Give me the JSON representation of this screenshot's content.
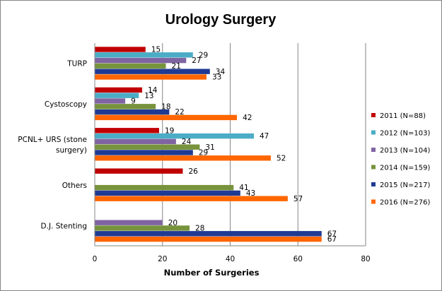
{
  "chart_data": {
    "type": "bar",
    "orientation": "horizontal",
    "title": "Urology Surgery",
    "xlabel": "Number of Surgeries",
    "ylabel": "",
    "xlim": [
      0,
      80
    ],
    "xticks": [
      0,
      20,
      40,
      60,
      80
    ],
    "grid": true,
    "legend_position": "right",
    "categories": [
      "TURP",
      "Cystoscopy",
      "PCNL+ URS (stone surgery)",
      "Others",
      "D.J. Stenting"
    ],
    "category_lines": [
      [
        "TURP"
      ],
      [
        "Cystoscopy"
      ],
      [
        "PCNL+ URS (stone",
        "surgery)"
      ],
      [
        "Others"
      ],
      [
        "D.J. Stenting"
      ]
    ],
    "series": [
      {
        "name": "2011 (N=88)",
        "color": "#C00000",
        "values": [
          15,
          14,
          19,
          26,
          null
        ]
      },
      {
        "name": "2012 (N=103)",
        "color": "#4BACC6",
        "values": [
          29,
          13,
          47,
          null,
          null
        ]
      },
      {
        "name": "2013 (N=104)",
        "color": "#8064A2",
        "values": [
          27,
          9,
          24,
          null,
          20
        ]
      },
      {
        "name": "2014 (N=159)",
        "color": "#77933C",
        "values": [
          21,
          18,
          31,
          41,
          28
        ]
      },
      {
        "name": "2015 (N=217)",
        "color": "#1F3A93",
        "values": [
          34,
          22,
          29,
          43,
          67
        ]
      },
      {
        "name": "2016 (N=276)",
        "color": "#FF6600",
        "values": [
          33,
          42,
          52,
          57,
          67
        ]
      }
    ]
  }
}
